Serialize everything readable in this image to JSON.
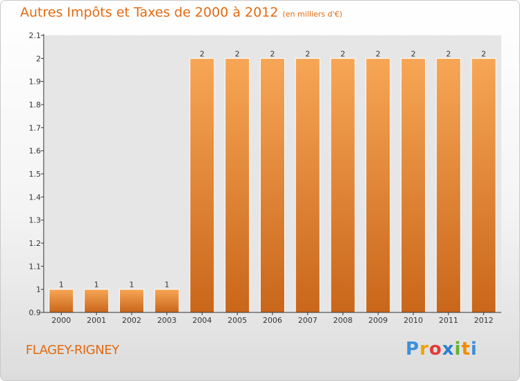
{
  "header": {
    "title": "Autres Impôts et Taxes de 2000 à 2012",
    "unit": "(en milliers d'€)"
  },
  "footer": {
    "place": "FLAGEY-RIGNEY",
    "logo": "Proxiti"
  },
  "colors": {
    "accent": "#e26a10",
    "bar_top": "#f7a656",
    "bar_bottom": "#c9661a"
  },
  "chart_data": {
    "type": "bar",
    "title": "Autres Impôts et Taxes de 2000 à 2012",
    "subtitle": "(en milliers d'€)",
    "categories": [
      "2000",
      "2001",
      "2002",
      "2003",
      "2004",
      "2005",
      "2006",
      "2007",
      "2008",
      "2009",
      "2010",
      "2011",
      "2012"
    ],
    "values": [
      1,
      1,
      1,
      1,
      2,
      2,
      2,
      2,
      2,
      2,
      2,
      2,
      2
    ],
    "data_labels": [
      "1",
      "1",
      "1",
      "1",
      "2",
      "2",
      "2",
      "2",
      "2",
      "2",
      "2",
      "2",
      "2"
    ],
    "ylim": [
      0.9,
      2.1
    ],
    "yticks": [
      0.9,
      1,
      1.1,
      1.2,
      1.3,
      1.4,
      1.5,
      1.6,
      1.7,
      1.8,
      1.9,
      2,
      2.1
    ],
    "ytick_labels": [
      "0.9",
      "1",
      "1.1",
      "1.2",
      "1.3",
      "1.4",
      "1.5",
      "1.6",
      "1.7",
      "1.8",
      "1.9",
      "2",
      "2.1"
    ],
    "xlabel": "",
    "ylabel": "",
    "grid": false,
    "legend": "none"
  }
}
